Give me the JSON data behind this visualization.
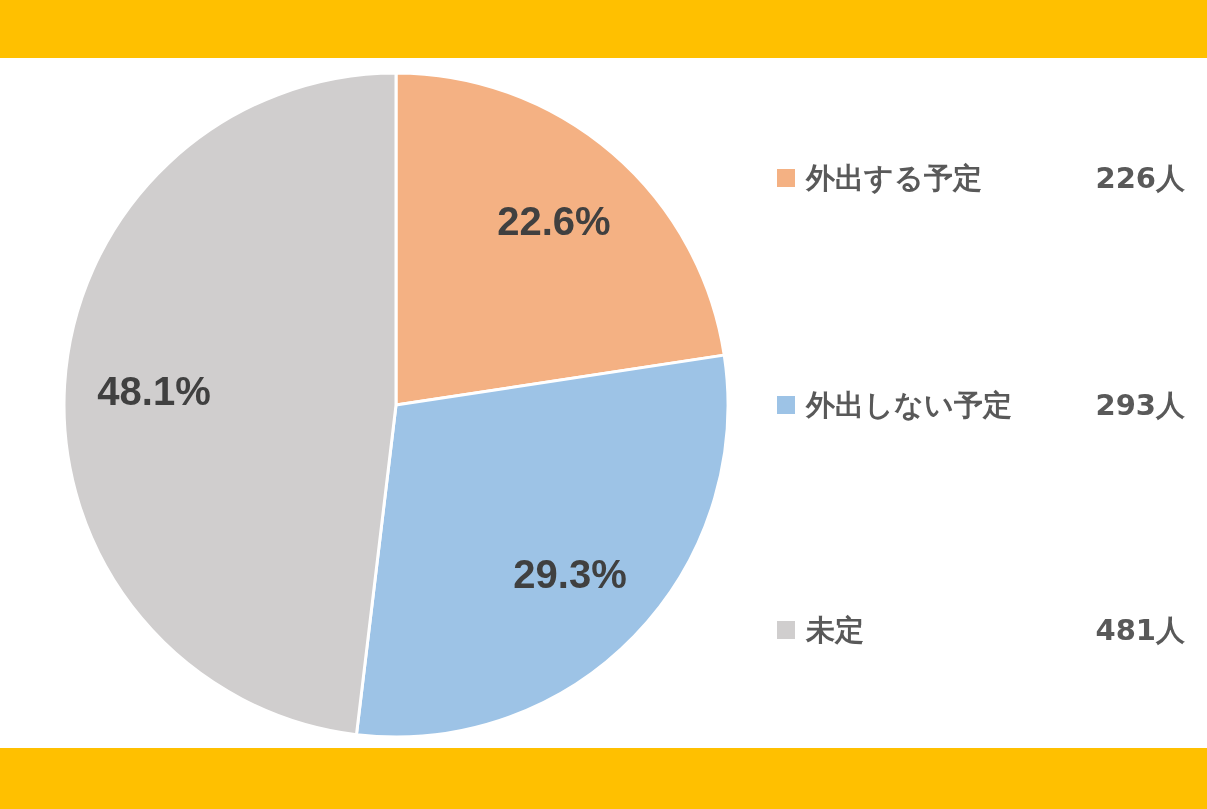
{
  "chart_data": {
    "type": "pie",
    "categories": [
      "外出する予定",
      "外出しない予定",
      "未定"
    ],
    "values": [
      22.6,
      29.3,
      48.1
    ],
    "value_labels": [
      "22.6%",
      "29.3%",
      "48.1%"
    ],
    "colors": [
      "#f4b183",
      "#9dc3e6",
      "#d0cece"
    ],
    "legend": "right",
    "annotations": [
      "226人",
      "293人",
      "481人"
    ]
  }
}
